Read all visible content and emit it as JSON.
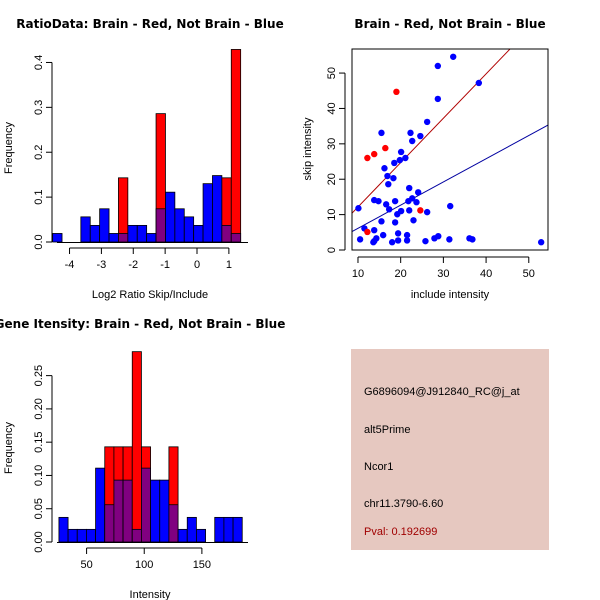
{
  "colors": {
    "brain": "#ff0000",
    "not_brain": "#0000ff",
    "overlap": "#800080",
    "brain_fit": "#b00000",
    "not_brain_fit": "#0000a0",
    "info_panel_bg": "#e6c8c0",
    "pval_text": "#a00000"
  },
  "chart_data": [
    {
      "id": "ratio-histogram",
      "type": "bar",
      "title": "RatioData: Brain - Red, Not Brain - Blue",
      "xlabel": "Log2 Ratio Skip/Include",
      "ylabel": "Frequency",
      "xlim": [
        -4.55,
        1.6
      ],
      "ylim": [
        0,
        0.43
      ],
      "xticks": [
        -4,
        -3,
        -2,
        -1,
        0,
        1
      ],
      "yticks": [
        0.0,
        0.1,
        0.2,
        0.3,
        0.4
      ],
      "ytick_labels": [
        "0.0",
        "0.1",
        "0.2",
        "0.3",
        "0.4"
      ],
      "bin_start": -4.53,
      "bin_width": 0.295,
      "series": [
        {
          "name": "Not Brain",
          "color": "blue",
          "values": [
            0.019,
            0,
            0,
            0.056,
            0.037,
            0.074,
            0.019,
            0.019,
            0.037,
            0.037,
            0.019,
            0.074,
            0.111,
            0.074,
            0.056,
            0.037,
            0.13,
            0.148,
            0.037,
            0.019
          ]
        },
        {
          "name": "Brain",
          "color": "red",
          "values": [
            0,
            0,
            0,
            0,
            0,
            0,
            0,
            0.143,
            0,
            0,
            0,
            0.286,
            0,
            0,
            0,
            0,
            0,
            0,
            0.143,
            0.429
          ]
        }
      ]
    },
    {
      "id": "intensity-scatter",
      "type": "scatter",
      "title": "Brain - Red, Not Brain - Blue",
      "xlabel": "include intensity",
      "ylabel": "skip intensity",
      "xlim": [
        8.6,
        54.5
      ],
      "ylim": [
        0,
        56.8
      ],
      "xticks": [
        10,
        20,
        30,
        40,
        50
      ],
      "yticks": [
        0,
        10,
        20,
        30,
        40,
        50
      ],
      "series": [
        {
          "name": "Brain",
          "color": "red",
          "points": [
            [
              19.0,
              44.7
            ],
            [
              12.2,
              26.0
            ],
            [
              13.8,
              27.1
            ],
            [
              16.4,
              28.8
            ],
            [
              24.6,
              11.2
            ],
            [
              12.2,
              5.1
            ]
          ],
          "fit_line": [
            [
              8.6,
              10.4
            ],
            [
              45.6,
              56.8
            ]
          ]
        },
        {
          "name": "Not Brain",
          "color": "blue",
          "points": [
            [
              32.3,
              54.6
            ],
            [
              28.7,
              52.0
            ],
            [
              38.3,
              47.2
            ],
            [
              28.7,
              42.7
            ],
            [
              26.2,
              36.2
            ],
            [
              15.5,
              33.1
            ],
            [
              22.3,
              33.1
            ],
            [
              24.6,
              32.2
            ],
            [
              22.7,
              30.8
            ],
            [
              20.1,
              27.7
            ],
            [
              19.8,
              25.4
            ],
            [
              21.1,
              26.0
            ],
            [
              18.5,
              24.6
            ],
            [
              16.2,
              23.1
            ],
            [
              16.9,
              20.9
            ],
            [
              18.3,
              20.3
            ],
            [
              17.1,
              18.6
            ],
            [
              22.0,
              17.5
            ],
            [
              24.1,
              16.3
            ],
            [
              13.8,
              14.1
            ],
            [
              14.8,
              13.8
            ],
            [
              18.7,
              13.8
            ],
            [
              21.8,
              13.8
            ],
            [
              22.7,
              14.6
            ],
            [
              23.7,
              13.5
            ],
            [
              16.6,
              12.9
            ],
            [
              31.6,
              12.4
            ],
            [
              10.1,
              11.8
            ],
            [
              17.3,
              11.5
            ],
            [
              22.0,
              11.2
            ],
            [
              20.1,
              11.0
            ],
            [
              19.2,
              10.1
            ],
            [
              26.2,
              10.7
            ],
            [
              15.5,
              8.1
            ],
            [
              23.0,
              8.4
            ],
            [
              18.7,
              7.8
            ],
            [
              11.5,
              6.1
            ],
            [
              13.8,
              5.6
            ],
            [
              15.9,
              4.2
            ],
            [
              19.4,
              4.7
            ],
            [
              21.5,
              4.2
            ],
            [
              10.5,
              3.0
            ],
            [
              14.3,
              3.3
            ],
            [
              13.8,
              2.5
            ],
            [
              13.6,
              2.2
            ],
            [
              18.0,
              2.2
            ],
            [
              19.4,
              2.7
            ],
            [
              21.5,
              2.7
            ],
            [
              25.8,
              2.5
            ],
            [
              27.9,
              3.3
            ],
            [
              28.8,
              3.9
            ],
            [
              31.4,
              3.0
            ],
            [
              36.1,
              3.3
            ],
            [
              36.8,
              3.0
            ],
            [
              52.9,
              2.2
            ]
          ],
          "fit_line": [
            [
              8.6,
              5.2
            ],
            [
              54.5,
              35.3
            ]
          ]
        }
      ]
    },
    {
      "id": "gene-intensity-histogram",
      "type": "bar",
      "title": "Gene Itensity: Brain - Red, Not Brain - Blue",
      "xlabel": "Intensity",
      "ylabel": "Frequency",
      "xlim": [
        20,
        190
      ],
      "ylim": [
        0,
        0.29
      ],
      "xticks": [
        50,
        100,
        150
      ],
      "yticks": [
        0.0,
        0.05,
        0.1,
        0.15,
        0.2,
        0.25
      ],
      "ytick_labels": [
        "0.00",
        "0.05",
        "0.10",
        "0.15",
        "0.20",
        "0.25"
      ],
      "bin_start": 26,
      "bin_width": 7.95,
      "series": [
        {
          "name": "Not Brain",
          "color": "blue",
          "values": [
            0.037,
            0.019,
            0.019,
            0.019,
            0.111,
            0.056,
            0.093,
            0.093,
            0.019,
            0.111,
            0.093,
            0.093,
            0.056,
            0.019,
            0.037,
            0.019,
            0,
            0.037,
            0.037,
            0.037
          ]
        },
        {
          "name": "Brain",
          "color": "red",
          "values": [
            0,
            0,
            0,
            0,
            0,
            0.143,
            0.143,
            0.143,
            0.286,
            0.143,
            0,
            0,
            0.143,
            0,
            0,
            0,
            0,
            0,
            0,
            0
          ]
        }
      ]
    }
  ],
  "info_panel": {
    "probe_id": "G6896094@J912840_RC@j_at",
    "event_type": "alt5Prime",
    "gene": "Ncor1",
    "location": "chr11.3790-6.60",
    "pval": "Pval: 0.192699"
  }
}
